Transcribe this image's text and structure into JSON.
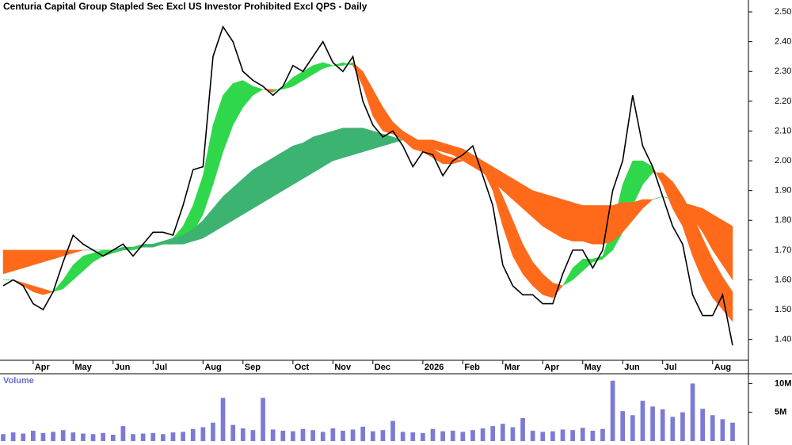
{
  "chart_data": [
    {
      "type": "line",
      "title": "Centuria Capital Group Stapled Sec Excl US Investor Prohibited Excl QPS - Daily",
      "categories": [
        null,
        null,
        null,
        "Apr",
        null,
        null,
        null,
        "May",
        null,
        null,
        null,
        "Jun",
        null,
        null,
        null,
        "Jul",
        null,
        null,
        null,
        null,
        "Aug",
        null,
        null,
        null,
        "Sep",
        null,
        null,
        null,
        null,
        "Oct",
        null,
        null,
        null,
        "Nov",
        null,
        null,
        null,
        "Dec",
        null,
        null,
        null,
        null,
        "2026",
        null,
        null,
        null,
        "Feb",
        null,
        null,
        null,
        "Mar",
        null,
        null,
        null,
        "Apr",
        null,
        null,
        null,
        "May",
        null,
        null,
        null,
        "Jun",
        null,
        null,
        null,
        "Jul",
        null,
        null,
        null,
        null,
        "Aug",
        null,
        null
      ],
      "series": [
        {
          "color": "#000000",
          "values": [
            1.58,
            1.6,
            1.58,
            1.52,
            1.5,
            1.56,
            1.66,
            1.75,
            1.72,
            1.7,
            1.68,
            1.7,
            1.72,
            1.68,
            1.72,
            1.76,
            1.76,
            1.75,
            1.85,
            1.97,
            1.98,
            2.35,
            2.45,
            2.4,
            2.3,
            2.27,
            2.25,
            2.22,
            2.25,
            2.32,
            2.3,
            2.35,
            2.4,
            2.33,
            2.3,
            2.35,
            2.2,
            2.12,
            2.08,
            2.1,
            2.05,
            1.98,
            2.03,
            2.02,
            1.95,
            2.0,
            2.02,
            2.05,
            1.95,
            1.85,
            1.65,
            1.58,
            1.55,
            1.55,
            1.52,
            1.52,
            1.62,
            1.7,
            1.7,
            1.64,
            1.7,
            1.9,
            2.0,
            2.22,
            2.05,
            1.98,
            1.88,
            1.78,
            1.72,
            1.55,
            1.48,
            1.48,
            1.55,
            1.38
          ]
        }
      ],
      "bands": [
        {
          "colors": [
            "#2fd84a",
            "#ff6a1a"
          ],
          "fast": [
            1.6,
            1.6,
            1.58,
            1.56,
            1.55,
            1.56,
            1.6,
            1.65,
            1.68,
            1.69,
            1.7,
            1.7,
            1.71,
            1.71,
            1.71,
            1.72,
            1.73,
            1.74,
            1.78,
            1.85,
            1.95,
            2.12,
            2.22,
            2.26,
            2.27,
            2.25,
            2.24,
            2.23,
            2.25,
            2.28,
            2.3,
            2.32,
            2.33,
            2.32,
            2.33,
            2.32,
            2.25,
            2.15,
            2.1,
            2.09,
            2.07,
            2.04,
            2.03,
            2.01,
            1.99,
            1.99,
            2.0,
            2.01,
            1.97,
            1.9,
            1.78,
            1.68,
            1.62,
            1.58,
            1.55,
            1.54,
            1.58,
            1.64,
            1.67,
            1.67,
            1.68,
            1.78,
            1.92,
            2.0,
            2.0,
            1.98,
            1.92,
            1.84,
            1.78,
            1.68,
            1.6,
            1.54,
            1.5,
            1.46
          ],
          "slow": [
            1.6,
            1.6,
            1.59,
            1.58,
            1.57,
            1.56,
            1.57,
            1.6,
            1.63,
            1.66,
            1.68,
            1.69,
            1.7,
            1.7,
            1.71,
            1.71,
            1.72,
            1.72,
            1.73,
            1.76,
            1.82,
            1.92,
            2.03,
            2.12,
            2.18,
            2.22,
            2.24,
            2.24,
            2.24,
            2.25,
            2.27,
            2.29,
            2.31,
            2.32,
            2.32,
            2.33,
            2.3,
            2.24,
            2.18,
            2.13,
            2.1,
            2.08,
            2.06,
            2.04,
            2.02,
            2.01,
            2.0,
            2.0,
            1.99,
            1.95,
            1.88,
            1.8,
            1.72,
            1.66,
            1.62,
            1.59,
            1.58,
            1.6,
            1.63,
            1.66,
            1.67,
            1.7,
            1.76,
            1.85,
            1.92,
            1.96,
            1.96,
            1.93,
            1.88,
            1.82,
            1.74,
            1.67,
            1.61,
            1.56
          ]
        },
        {
          "colors": [
            "#3cb371",
            "#ff6a1a"
          ],
          "fast": [
            1.62,
            1.63,
            1.64,
            1.65,
            1.66,
            1.67,
            1.68,
            1.69,
            1.7,
            1.7,
            1.7,
            1.7,
            1.71,
            1.71,
            1.72,
            1.72,
            1.73,
            1.74,
            1.75,
            1.77,
            1.8,
            1.84,
            1.88,
            1.91,
            1.94,
            1.97,
            1.99,
            2.01,
            2.03,
            2.05,
            2.06,
            2.08,
            2.09,
            2.1,
            2.11,
            2.11,
            2.11,
            2.1,
            2.09,
            2.08,
            2.07,
            2.06,
            2.05,
            2.04,
            2.03,
            2.02,
            2.0,
            1.98,
            1.96,
            1.93,
            1.9,
            1.87,
            1.84,
            1.81,
            1.78,
            1.76,
            1.74,
            1.73,
            1.73,
            1.72,
            1.72,
            1.73,
            1.76,
            1.8,
            1.84,
            1.87,
            1.88,
            1.87,
            1.85,
            1.81,
            1.76,
            1.7,
            1.65,
            1.6
          ],
          "slow": [
            1.7,
            1.7,
            1.7,
            1.7,
            1.7,
            1.7,
            1.7,
            1.7,
            1.7,
            1.7,
            1.7,
            1.7,
            1.7,
            1.71,
            1.71,
            1.71,
            1.72,
            1.72,
            1.72,
            1.73,
            1.74,
            1.76,
            1.78,
            1.8,
            1.82,
            1.84,
            1.86,
            1.88,
            1.9,
            1.92,
            1.94,
            1.96,
            1.98,
            2.0,
            2.01,
            2.02,
            2.03,
            2.04,
            2.05,
            2.06,
            2.07,
            2.07,
            2.07,
            2.07,
            2.06,
            2.05,
            2.04,
            2.02,
            2.0,
            1.98,
            1.96,
            1.94,
            1.92,
            1.9,
            1.89,
            1.88,
            1.87,
            1.86,
            1.85,
            1.85,
            1.85,
            1.85,
            1.86,
            1.86,
            1.87,
            1.87,
            1.88,
            1.87,
            1.86,
            1.85,
            1.84,
            1.82,
            1.8,
            1.78
          ]
        }
      ],
      "ylim": [
        1.33,
        2.54
      ],
      "yticks": [
        {
          "value": 1.4,
          "label": "1.40"
        },
        {
          "value": 1.5,
          "label": "1.50"
        },
        {
          "value": 1.6,
          "label": "1.60"
        },
        {
          "value": 1.7,
          "label": "1.70"
        },
        {
          "value": 1.8,
          "label": "1.80"
        },
        {
          "value": 1.9,
          "label": "1.90"
        },
        {
          "value": 2.0,
          "label": "2.00"
        },
        {
          "value": 2.1,
          "label": "2.10"
        },
        {
          "value": 2.2,
          "label": "2.20"
        },
        {
          "value": 2.3,
          "label": "2.30"
        },
        {
          "value": 2.4,
          "label": "2.40"
        },
        {
          "value": 2.5,
          "label": "2.50"
        }
      ]
    },
    {
      "type": "bar",
      "title": "Volume",
      "color": "#7b7bd6",
      "values": [
        1200000,
        1500000,
        1300000,
        1800000,
        1400000,
        1600000,
        1900000,
        1500000,
        1300000,
        1200000,
        1400000,
        1100000,
        2600000,
        1200000,
        1300000,
        1400000,
        1200000,
        1500000,
        1600000,
        2100000,
        2400000,
        3200000,
        7500000,
        2800000,
        2200000,
        1900000,
        7500000,
        2000000,
        1800000,
        1700000,
        2100000,
        1900000,
        1600000,
        2200000,
        1800000,
        2000000,
        2500000,
        1700000,
        1900000,
        3500000,
        1600000,
        1500000,
        1400000,
        2100000,
        1700000,
        1800000,
        1600000,
        1900000,
        2200000,
        2600000,
        3000000,
        2400000,
        4000000,
        1800000,
        1600000,
        1700000,
        2000000,
        1900000,
        2300000,
        1800000,
        2100000,
        10500000,
        5200000,
        4500000,
        7000000,
        6000000,
        5500000,
        4200000,
        5000000,
        10000000,
        5600000,
        4500000,
        3800000,
        3200000
      ],
      "ylim": [
        0,
        11700000
      ],
      "yticks": [
        {
          "value": 5000000,
          "label": "5M"
        },
        {
          "value": 10000000,
          "label": "10M"
        }
      ]
    }
  ]
}
